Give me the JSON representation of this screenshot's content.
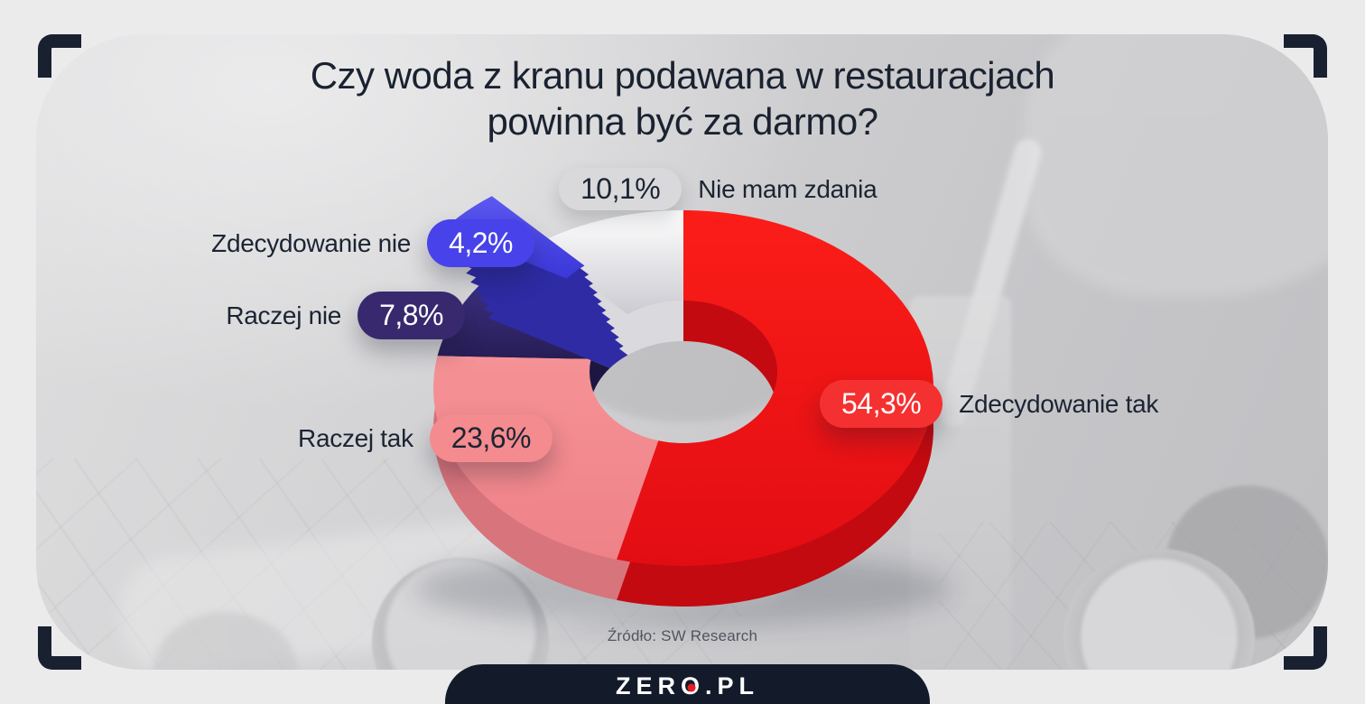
{
  "header": {
    "title_line1": "Czy woda z kranu podawana w restauracjach",
    "title_line2": "powinna być za darmo?"
  },
  "chart_data": {
    "type": "pie",
    "variant": "3d-exploded-donut",
    "title": "Czy woda z kranu podawana w restauracjach powinna być za darmo?",
    "unit": "%",
    "start_angle_deg": 0,
    "direction": "clockwise",
    "slices": [
      {
        "name": "Zdecydowanie tak",
        "value": 54.3,
        "value_label": "54,3%",
        "color": "#fb1d18",
        "color_dark": "#e20d13",
        "color_side": "#c30a10",
        "pill_color": "#f53030",
        "pill_text": "light",
        "exploded": false
      },
      {
        "name": "Raczej tak",
        "value": 23.6,
        "value_label": "23,6%",
        "color": "#f59296",
        "color_dark": "#ee8288",
        "color_side": "#d8747c",
        "pill_color": "#f48b8e",
        "pill_text": "dark",
        "exploded": false
      },
      {
        "name": "Raczej nie",
        "value": 7.8,
        "value_label": "7,8%",
        "color": "#3e3284",
        "color_dark": "#271d55",
        "color_side": "#1d1642",
        "pill_color": "#38296f",
        "pill_text": "light",
        "exploded": false
      },
      {
        "name": "Zdecydowanie nie",
        "value": 4.2,
        "value_label": "4,2%",
        "color": "#5c59f2",
        "color_dark": "#3a37d8",
        "color_side": "#2e2ba4",
        "pill_color": "#4742e9",
        "pill_text": "light",
        "exploded": true
      },
      {
        "name": "Nie mam zdania",
        "value": 10.1,
        "value_label": "10,1%",
        "color": "#ffffff",
        "color_dark": "#cbcbd2",
        "color_side": "#dadade",
        "pill_color": "#d9d9db",
        "pill_text": "dark",
        "exploded": false
      }
    ],
    "source": "Źródło: SW Research"
  },
  "footer": {
    "source_label": "Źródło: SW Research",
    "logo": {
      "prefix": "ZER",
      "o": "O",
      "suffix": ".PL",
      "full_text": "ZERO.PL"
    }
  },
  "colors": {
    "accent_red": "#f53030",
    "accent_blue": "#4742e9",
    "accent_navy": "#38296f",
    "accent_salmon": "#f48b8e",
    "ink": "#1b2433",
    "bracket": "#192130",
    "logo_bg": "#131b2b",
    "logo_dot": "#e81c24"
  }
}
